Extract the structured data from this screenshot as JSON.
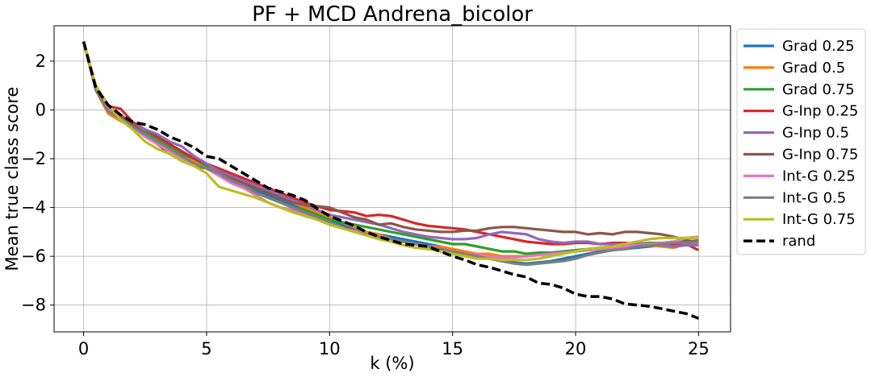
{
  "chart_data": {
    "type": "line",
    "title": "PF + MCD Andrena_bicolor",
    "xlabel": "k (%)",
    "ylabel": "Mean true class score",
    "xlim": [
      -1.2,
      26.3
    ],
    "ylim": [
      -9.1,
      3.45
    ],
    "xticks": [
      0,
      5,
      10,
      15,
      20,
      25
    ],
    "yticks": [
      2,
      0,
      -2,
      -4,
      -6,
      -8
    ],
    "xtick_labels": [
      "0",
      "5",
      "10",
      "15",
      "20",
      "25"
    ],
    "ytick_labels": [
      "2",
      "0",
      "−2",
      "−4",
      "−6",
      "−8"
    ],
    "grid": true,
    "legend_position": "outside-right",
    "x": [
      0,
      0.5,
      1,
      1.5,
      2,
      2.5,
      3,
      3.5,
      4,
      4.5,
      5,
      5.5,
      6,
      6.5,
      7,
      7.5,
      8,
      8.5,
      9,
      9.5,
      10,
      10.5,
      11,
      11.5,
      12,
      12.5,
      13,
      13.5,
      14,
      14.5,
      15,
      15.5,
      16,
      16.5,
      17,
      17.5,
      18,
      18.5,
      19,
      19.5,
      20,
      20.5,
      21,
      21.5,
      22,
      22.5,
      23,
      23.5,
      24,
      24.5,
      25
    ],
    "series": [
      {
        "name": "Grad 0.25",
        "color": "#1f77b4",
        "dash": "solid",
        "values": [
          2.8,
          0.9,
          0.1,
          -0.2,
          -0.6,
          -0.9,
          -1.3,
          -1.6,
          -1.9,
          -2.1,
          -2.3,
          -2.5,
          -2.8,
          -3.0,
          -3.3,
          -3.5,
          -3.7,
          -3.9,
          -4.1,
          -4.3,
          -4.5,
          -4.7,
          -4.9,
          -5.0,
          -5.1,
          -5.2,
          -5.3,
          -5.4,
          -5.5,
          -5.6,
          -5.8,
          -5.9,
          -6.0,
          -6.1,
          -6.2,
          -6.25,
          -6.3,
          -6.25,
          -6.2,
          -6.1,
          -6.0,
          -5.9,
          -5.8,
          -5.75,
          -5.7,
          -5.65,
          -5.6,
          -5.55,
          -5.5,
          -5.5,
          -5.4
        ]
      },
      {
        "name": "Grad 0.5",
        "color": "#ff7f0e",
        "dash": "solid",
        "values": [
          2.8,
          0.8,
          -0.15,
          -0.45,
          -0.7,
          -1.0,
          -1.3,
          -1.5,
          -1.8,
          -2.1,
          -2.3,
          -2.6,
          -2.8,
          -3.0,
          -3.2,
          -3.4,
          -3.6,
          -3.8,
          -4.0,
          -4.2,
          -4.4,
          -4.6,
          -4.8,
          -5.0,
          -5.1,
          -5.3,
          -5.4,
          -5.5,
          -5.6,
          -5.6,
          -5.7,
          -5.8,
          -5.9,
          -5.9,
          -6.0,
          -6.0,
          -6.0,
          -5.95,
          -5.9,
          -5.85,
          -5.8,
          -5.75,
          -5.7,
          -5.65,
          -5.6,
          -5.6,
          -5.55,
          -5.6,
          -5.65,
          -5.5,
          -5.5
        ]
      },
      {
        "name": "Grad 0.75",
        "color": "#2ca02c",
        "dash": "solid",
        "values": [
          2.8,
          0.9,
          0.0,
          -0.3,
          -0.6,
          -0.9,
          -1.2,
          -1.5,
          -1.8,
          -2.0,
          -2.3,
          -2.4,
          -2.7,
          -3.1,
          -3.4,
          -3.6,
          -3.8,
          -4.0,
          -4.1,
          -4.3,
          -4.5,
          -4.6,
          -4.7,
          -4.8,
          -4.9,
          -5.0,
          -5.1,
          -5.2,
          -5.3,
          -5.4,
          -5.5,
          -5.5,
          -5.6,
          -5.7,
          -5.8,
          -5.8,
          -5.9,
          -5.85,
          -5.85,
          -5.8,
          -5.75,
          -5.7,
          -5.65,
          -5.6,
          -5.55,
          -5.5,
          -5.45,
          -5.45,
          -5.4,
          -5.4,
          -5.35
        ]
      },
      {
        "name": "G-Inp 0.25",
        "color": "#d62728",
        "dash": "solid",
        "values": [
          2.8,
          0.8,
          0.15,
          0.05,
          -0.5,
          -0.8,
          -1.1,
          -1.4,
          -1.7,
          -2.0,
          -2.2,
          -2.4,
          -2.6,
          -2.8,
          -3.0,
          -3.2,
          -3.4,
          -3.6,
          -3.8,
          -3.95,
          -4.1,
          -4.15,
          -4.2,
          -4.35,
          -4.3,
          -4.35,
          -4.5,
          -4.65,
          -4.75,
          -4.8,
          -4.85,
          -4.9,
          -5.0,
          -5.1,
          -5.2,
          -5.3,
          -5.4,
          -5.45,
          -5.5,
          -5.5,
          -5.45,
          -5.45,
          -5.5,
          -5.45,
          -5.45,
          -5.5,
          -5.5,
          -5.5,
          -5.5,
          -5.5,
          -5.75
        ]
      },
      {
        "name": "G-Inp 0.5",
        "color": "#9467bd",
        "dash": "solid",
        "values": [
          2.8,
          0.9,
          0.0,
          -0.3,
          -0.6,
          -0.8,
          -1.0,
          -1.3,
          -1.5,
          -1.9,
          -2.2,
          -2.5,
          -2.7,
          -2.9,
          -3.1,
          -3.3,
          -3.5,
          -3.7,
          -3.9,
          -4.1,
          -4.3,
          -4.4,
          -4.5,
          -4.6,
          -4.7,
          -4.85,
          -5.0,
          -5.1,
          -5.2,
          -5.25,
          -5.3,
          -5.3,
          -5.25,
          -5.1,
          -5.0,
          -5.05,
          -5.1,
          -5.3,
          -5.4,
          -5.45,
          -5.4,
          -5.4,
          -5.5,
          -5.5,
          -5.5,
          -5.45,
          -5.5,
          -5.55,
          -5.6,
          -5.55,
          -5.55
        ]
      },
      {
        "name": "G-Inp 0.75",
        "color": "#8c564b",
        "dash": "solid",
        "values": [
          2.8,
          0.9,
          0.0,
          -0.2,
          -0.6,
          -1.0,
          -1.4,
          -1.8,
          -2.1,
          -2.3,
          -2.4,
          -2.6,
          -2.8,
          -3.0,
          -3.2,
          -3.4,
          -3.6,
          -3.8,
          -3.9,
          -3.95,
          -4.0,
          -4.2,
          -4.4,
          -4.5,
          -4.7,
          -4.65,
          -4.8,
          -4.9,
          -4.95,
          -5.0,
          -5.0,
          -4.95,
          -4.95,
          -4.85,
          -4.8,
          -4.8,
          -4.85,
          -4.9,
          -4.95,
          -5.0,
          -5.0,
          -5.1,
          -5.05,
          -5.1,
          -5.0,
          -5.0,
          -5.05,
          -5.1,
          -5.2,
          -5.35,
          -5.4
        ]
      },
      {
        "name": "Int-G 0.25",
        "color": "#e377c2",
        "dash": "solid",
        "values": [
          2.8,
          0.9,
          0.0,
          -0.4,
          -0.7,
          -1.1,
          -1.4,
          -1.7,
          -2.0,
          -2.2,
          -2.4,
          -2.7,
          -3.0,
          -3.2,
          -3.5,
          -3.8,
          -4.0,
          -4.1,
          -4.3,
          -4.5,
          -4.7,
          -4.85,
          -4.95,
          -5.1,
          -5.2,
          -5.3,
          -5.4,
          -5.5,
          -5.6,
          -5.7,
          -5.8,
          -5.9,
          -5.95,
          -6.0,
          -6.05,
          -6.05,
          -6.0,
          -5.95,
          -5.9,
          -5.85,
          -5.8,
          -5.75,
          -5.7,
          -5.65,
          -5.6,
          -5.55,
          -5.5,
          -5.45,
          -5.4,
          -5.25,
          -5.2
        ]
      },
      {
        "name": "Int-G 0.5",
        "color": "#7f7f7f",
        "dash": "solid",
        "values": [
          2.8,
          0.8,
          -0.05,
          -0.35,
          -0.7,
          -1.0,
          -1.3,
          -1.6,
          -1.9,
          -2.2,
          -2.4,
          -2.6,
          -2.9,
          -3.1,
          -3.4,
          -3.6,
          -3.8,
          -4.0,
          -4.2,
          -4.4,
          -4.6,
          -4.8,
          -5.0,
          -5.1,
          -5.2,
          -5.3,
          -5.4,
          -5.5,
          -5.6,
          -5.7,
          -5.8,
          -5.9,
          -6.0,
          -6.1,
          -6.2,
          -6.3,
          -6.35,
          -6.3,
          -6.25,
          -6.2,
          -6.1,
          -5.95,
          -5.85,
          -5.75,
          -5.7,
          -5.6,
          -5.55,
          -5.5,
          -5.45,
          -5.45,
          -5.4
        ]
      },
      {
        "name": "Int-G 0.75",
        "color": "#bcbd22",
        "dash": "solid",
        "values": [
          2.8,
          1.0,
          0.2,
          -0.4,
          -0.8,
          -1.3,
          -1.6,
          -1.8,
          -2.1,
          -2.3,
          -2.6,
          -3.15,
          -3.3,
          -3.45,
          -3.6,
          -3.8,
          -4.0,
          -4.2,
          -4.35,
          -4.5,
          -4.7,
          -4.85,
          -5.0,
          -5.15,
          -5.3,
          -5.4,
          -5.55,
          -5.65,
          -5.7,
          -5.8,
          -5.9,
          -6.0,
          -6.1,
          -6.1,
          -6.15,
          -6.15,
          -6.15,
          -6.1,
          -6.0,
          -5.9,
          -5.8,
          -5.7,
          -5.65,
          -5.6,
          -5.5,
          -5.4,
          -5.3,
          -5.25,
          -5.25,
          -5.25,
          -5.25
        ]
      },
      {
        "name": "rand",
        "color": "#000000",
        "dash": "dashed",
        "values": [
          2.8,
          0.9,
          0.2,
          -0.2,
          -0.5,
          -0.6,
          -0.8,
          -1.1,
          -1.3,
          -1.55,
          -1.9,
          -2.0,
          -2.3,
          -2.6,
          -2.9,
          -3.2,
          -3.35,
          -3.5,
          -3.7,
          -4.05,
          -4.35,
          -4.55,
          -4.75,
          -5.0,
          -5.2,
          -5.35,
          -5.5,
          -5.55,
          -5.6,
          -5.8,
          -6.0,
          -6.15,
          -6.35,
          -6.45,
          -6.6,
          -6.75,
          -6.85,
          -7.1,
          -7.15,
          -7.3,
          -7.55,
          -7.65,
          -7.65,
          -7.75,
          -7.95,
          -8.0,
          -8.05,
          -8.15,
          -8.25,
          -8.35,
          -8.55
        ]
      }
    ]
  }
}
